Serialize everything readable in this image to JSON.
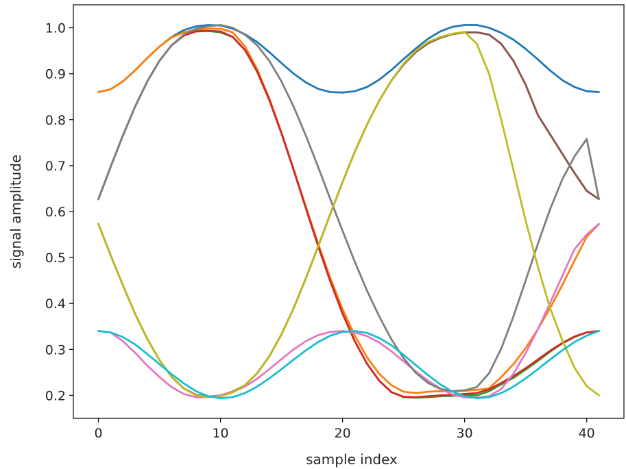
{
  "chart_data": {
    "type": "line",
    "title": "",
    "xlabel": "sample index",
    "ylabel": "signal amplitude",
    "xlim": [
      -2.05,
      43.05
    ],
    "ylim": [
      0.15,
      1.05
    ],
    "xticks": [
      0,
      10,
      20,
      30,
      40
    ],
    "yticks": [
      0.2,
      0.3,
      0.4,
      0.5,
      0.6,
      0.7,
      0.8,
      0.9,
      1.0
    ],
    "xtick_labels": [
      "0",
      "10",
      "20",
      "30",
      "40"
    ],
    "ytick_labels": [
      "0.2",
      "0.3",
      "0.4",
      "0.5",
      "0.6",
      "0.7",
      "0.8",
      "0.9",
      "1.0"
    ],
    "grid": false,
    "legend": false,
    "x": [
      0,
      1,
      2,
      3,
      4,
      5,
      6,
      7,
      8,
      9,
      10,
      11,
      12,
      13,
      14,
      15,
      16,
      17,
      18,
      19,
      20,
      21,
      22,
      23,
      24,
      25,
      26,
      27,
      28,
      29,
      30,
      31,
      32,
      33,
      34,
      35,
      36,
      37,
      38,
      39,
      40,
      41
    ],
    "series": [
      {
        "color": "#1f77b4",
        "values": [
          0.86,
          0.866,
          0.883,
          0.907,
          0.934,
          0.959,
          0.98,
          0.995,
          1.003,
          1.006,
          1.005,
          0.998,
          0.986,
          0.969,
          0.947,
          0.923,
          0.9,
          0.881,
          0.867,
          0.86,
          0.859,
          0.862,
          0.871,
          0.887,
          0.908,
          0.932,
          0.955,
          0.976,
          0.992,
          1.002,
          1.006,
          1.006,
          1.0,
          0.989,
          0.974,
          0.954,
          0.931,
          0.907,
          0.886,
          0.871,
          0.862,
          0.86
        ]
      },
      {
        "color": "#ff7f0e",
        "values": [
          0.86,
          0.866,
          0.883,
          0.907,
          0.934,
          0.959,
          0.979,
          0.99,
          0.996,
          0.998,
          0.998,
          0.99,
          0.96,
          0.91,
          0.846,
          0.772,
          0.692,
          0.61,
          0.53,
          0.455,
          0.388,
          0.33,
          0.283,
          0.247,
          0.222,
          0.208,
          0.205,
          0.208,
          0.209,
          0.209,
          0.21,
          0.212,
          0.215,
          0.24,
          0.268,
          0.303,
          0.344,
          0.39,
          0.44,
          0.493,
          0.545,
          0.573
        ]
      },
      {
        "color": "#2ca02c",
        "values": [
          0.627,
          0.697,
          0.765,
          0.828,
          0.883,
          0.928,
          0.962,
          0.983,
          0.993,
          0.993,
          0.99,
          0.98,
          0.952,
          0.905,
          0.843,
          0.77,
          0.69,
          0.607,
          0.525,
          0.448,
          0.378,
          0.318,
          0.269,
          0.232,
          0.207,
          0.196,
          0.195,
          0.196,
          0.198,
          0.199,
          0.2,
          0.2,
          0.209,
          0.224,
          0.238,
          0.256,
          0.275,
          0.295,
          0.313,
          0.327,
          0.337,
          0.34
        ]
      },
      {
        "color": "#d62728",
        "values": [
          0.627,
          0.697,
          0.765,
          0.828,
          0.883,
          0.928,
          0.962,
          0.983,
          0.992,
          0.993,
          0.992,
          0.98,
          0.952,
          0.905,
          0.843,
          0.77,
          0.69,
          0.607,
          0.525,
          0.448,
          0.378,
          0.318,
          0.269,
          0.232,
          0.207,
          0.197,
          0.196,
          0.198,
          0.2,
          0.201,
          0.203,
          0.205,
          0.213,
          0.227,
          0.242,
          0.259,
          0.278,
          0.297,
          0.314,
          0.328,
          0.337,
          0.34
        ]
      },
      {
        "color": "#9467bd",
        "values": [
          0.573,
          0.505,
          0.44,
          0.378,
          0.323,
          0.277,
          0.24,
          0.215,
          0.201,
          0.197,
          0.2,
          0.208,
          0.222,
          0.248,
          0.285,
          0.333,
          0.39,
          0.455,
          0.524,
          0.595,
          0.664,
          0.73,
          0.789,
          0.841,
          0.885,
          0.92,
          0.947,
          0.966,
          0.978,
          0.986,
          0.99,
          0.99,
          0.985,
          0.965,
          0.928,
          0.876,
          0.81,
          0.768,
          0.726,
          0.684,
          0.645,
          0.627
        ]
      },
      {
        "color": "#8c564b",
        "values": [
          0.573,
          0.505,
          0.44,
          0.378,
          0.323,
          0.277,
          0.24,
          0.215,
          0.201,
          0.197,
          0.2,
          0.208,
          0.222,
          0.248,
          0.285,
          0.333,
          0.39,
          0.455,
          0.524,
          0.595,
          0.664,
          0.73,
          0.789,
          0.841,
          0.885,
          0.92,
          0.947,
          0.966,
          0.978,
          0.986,
          0.99,
          0.99,
          0.985,
          0.965,
          0.928,
          0.876,
          0.81,
          0.768,
          0.726,
          0.684,
          0.645,
          0.627
        ]
      },
      {
        "color": "#e377c2",
        "values": [
          0.34,
          0.337,
          0.318,
          0.293,
          0.265,
          0.24,
          0.218,
          0.203,
          0.196,
          0.196,
          0.2,
          0.207,
          0.219,
          0.236,
          0.257,
          0.279,
          0.3,
          0.318,
          0.331,
          0.338,
          0.34,
          0.337,
          0.329,
          0.315,
          0.296,
          0.274,
          0.252,
          0.232,
          0.215,
          0.202,
          0.196,
          0.195,
          0.198,
          0.214,
          0.247,
          0.292,
          0.344,
          0.401,
          0.46,
          0.518,
          0.55,
          0.573
        ]
      },
      {
        "color": "#7f7f7f",
        "values": [
          0.627,
          0.697,
          0.765,
          0.828,
          0.883,
          0.928,
          0.962,
          0.985,
          0.998,
          1.003,
          1.006,
          1.0,
          0.985,
          0.962,
          0.928,
          0.883,
          0.828,
          0.765,
          0.697,
          0.627,
          0.558,
          0.491,
          0.428,
          0.372,
          0.322,
          0.281,
          0.249,
          0.227,
          0.214,
          0.209,
          0.211,
          0.218,
          0.248,
          0.302,
          0.372,
          0.45,
          0.53,
          0.605,
          0.67,
          0.72,
          0.758,
          0.627
        ]
      },
      {
        "color": "#bcbd22",
        "values": [
          0.573,
          0.505,
          0.44,
          0.378,
          0.323,
          0.277,
          0.24,
          0.215,
          0.2,
          0.196,
          0.198,
          0.206,
          0.222,
          0.248,
          0.285,
          0.333,
          0.39,
          0.455,
          0.524,
          0.595,
          0.664,
          0.73,
          0.789,
          0.841,
          0.885,
          0.922,
          0.95,
          0.969,
          0.98,
          0.987,
          0.991,
          0.965,
          0.9,
          0.8,
          0.69,
          0.58,
          0.48,
          0.39,
          0.32,
          0.26,
          0.22,
          0.2
        ]
      },
      {
        "color": "#17becf",
        "values": [
          0.34,
          0.337,
          0.327,
          0.311,
          0.29,
          0.268,
          0.246,
          0.226,
          0.209,
          0.198,
          0.194,
          0.196,
          0.205,
          0.219,
          0.237,
          0.257,
          0.278,
          0.298,
          0.316,
          0.33,
          0.338,
          0.34,
          0.336,
          0.325,
          0.309,
          0.288,
          0.266,
          0.244,
          0.224,
          0.208,
          0.198,
          0.194,
          0.196,
          0.205,
          0.219,
          0.237,
          0.257,
          0.278,
          0.298,
          0.316,
          0.33,
          0.34
        ]
      }
    ]
  }
}
